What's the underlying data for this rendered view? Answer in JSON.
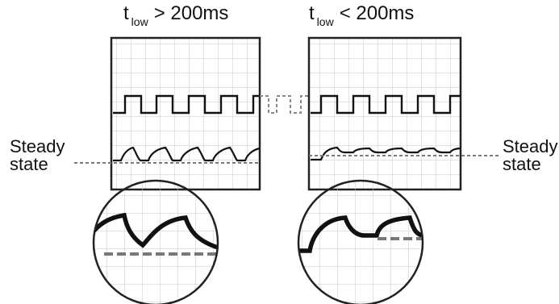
{
  "left_title": {
    "t": "t",
    "sub": "low",
    "condition": "> 200ms"
  },
  "right_title": {
    "t": "t",
    "sub": "low",
    "condition": "< 200ms"
  },
  "left_side_label": {
    "line1": "Steady",
    "line2": "state"
  },
  "right_side_label": {
    "line1": "Steady",
    "line2": "state"
  },
  "colors": {
    "frame": "#222222",
    "grid": "#bdbdbd",
    "trace": "#111111",
    "dashed": "#7a7a7a"
  }
}
